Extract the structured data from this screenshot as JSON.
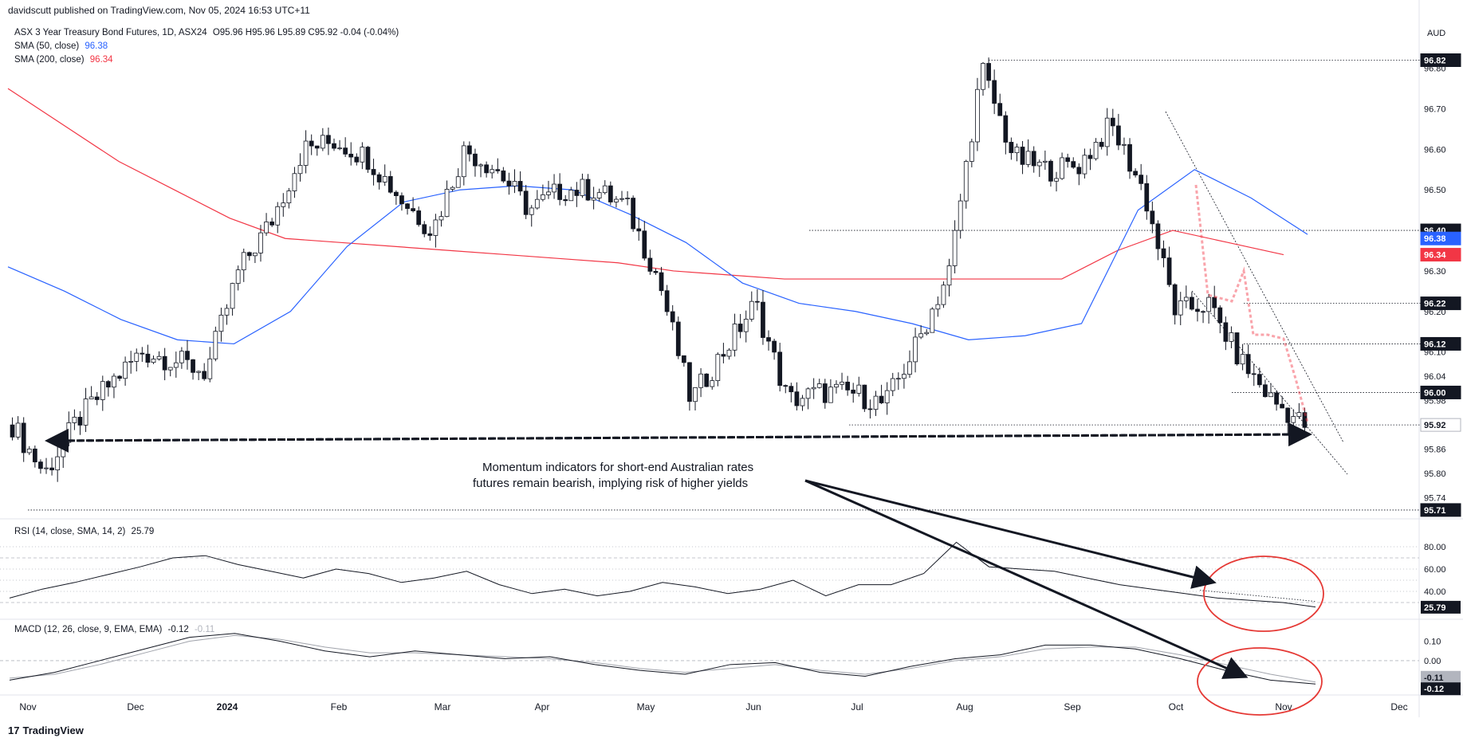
{
  "header": {
    "publisher_line": "davidscutt published on TradingView.com, Nov 05, 2024 16:53 UTC+11",
    "symbol_line": "ASX 3 Year Treasury Bond Futures, 1D, ASX24",
    "ohlc": "O95.96 H95.96 L95.89 C95.92 -0.04 (-0.04%)",
    "currency": "AUD",
    "sma50_label": "SMA (50, close)",
    "sma50_value": "96.38",
    "sma200_label": "SMA (200, close)",
    "sma200_value": "96.34",
    "rsi_label": "RSI (14, close, SMA, 14, 2)",
    "rsi_value": "25.79",
    "macd_label": "MACD (12, 26, close, 9, EMA, EMA)",
    "macd_value": "-0.12",
    "macd_signal_value": "-0.11"
  },
  "annotation": {
    "line1": "Momentum indicators for short-end Australian rates",
    "line2": "futures remain bearish, implying risk of higher yields"
  },
  "brand": {
    "name": "TradingView",
    "mark": "17"
  },
  "colors": {
    "up": "#ffffff",
    "down": "#131722",
    "sma50": "#2962ff",
    "sma200": "#f23645",
    "grid": "#b2b5be",
    "highlight": "#f23645"
  },
  "chart_data": {
    "type": "candlestick",
    "title": "ASX 3 Year Treasury Bond Futures, 1D, ASX24",
    "x_ticks": [
      "Nov",
      "Dec",
      "2024",
      "Feb",
      "Mar",
      "Apr",
      "May",
      "Jun",
      "Jul",
      "Aug",
      "Sep",
      "Oct",
      "Nov",
      "Dec"
    ],
    "price_axis": {
      "ticks": [
        95.74,
        95.8,
        95.86,
        95.98,
        96.04,
        96.1,
        96.2,
        96.3,
        96.5,
        96.6,
        96.7,
        96.8
      ],
      "labeled_levels": [
        {
          "value": 96.82,
          "label": "96.82",
          "style": "dark"
        },
        {
          "value": 96.4,
          "label": "96.40",
          "style": "dark"
        },
        {
          "value": 96.38,
          "label": "96.38",
          "style": "blue"
        },
        {
          "value": 96.34,
          "label": "96.34",
          "style": "red"
        },
        {
          "value": 96.22,
          "label": "96.22",
          "style": "dark"
        },
        {
          "value": 96.12,
          "label": "96.12",
          "style": "dark"
        },
        {
          "value": 96.0,
          "label": "96.00",
          "style": "dark"
        },
        {
          "value": 95.92,
          "label": "95.92",
          "style": "light"
        },
        {
          "value": 95.71,
          "label": "95.71",
          "style": "dark"
        }
      ],
      "range": [
        95.7,
        96.88
      ]
    },
    "series": [
      {
        "name": "SMA (50, close)",
        "type": "line",
        "color": "#2962ff",
        "values": [
          96.31,
          96.25,
          96.18,
          96.13,
          96.12,
          96.2,
          96.36,
          96.47,
          96.5,
          96.51,
          96.5,
          96.44,
          96.37,
          96.27,
          96.22,
          96.2,
          96.17,
          96.13,
          96.14,
          96.17,
          96.45,
          96.55,
          96.48,
          96.39
        ]
      },
      {
        "name": "SMA (200, close)",
        "type": "line",
        "color": "#f23645",
        "values": [
          96.75,
          96.66,
          96.57,
          96.5,
          96.43,
          96.38,
          96.37,
          96.36,
          96.35,
          96.34,
          96.33,
          96.32,
          96.3,
          96.29,
          96.28,
          96.28,
          96.28,
          96.28,
          96.28,
          96.28,
          96.35,
          96.4,
          96.37,
          96.34
        ]
      }
    ],
    "candles_close": [
      95.92,
      95.8,
      95.93,
      96.02,
      96.1,
      96.08,
      96.05,
      96.3,
      96.42,
      96.6,
      96.62,
      96.58,
      96.48,
      96.4,
      96.6,
      96.55,
      96.45,
      96.5,
      96.5,
      96.46,
      96.28,
      95.98,
      96.1,
      96.22,
      95.98,
      96.0,
      96.0,
      95.97,
      96.12,
      96.3,
      96.8,
      96.58,
      96.55,
      96.56,
      96.66,
      96.5,
      96.2,
      96.22,
      96.08,
      95.98,
      95.92
    ],
    "rsi": {
      "name": "RSI (14, close, SMA, 14, 2)",
      "levels": [
        80,
        70,
        60,
        50,
        40,
        30
      ],
      "last": 25.79,
      "values": [
        34,
        42,
        48,
        55,
        62,
        70,
        72,
        64,
        58,
        52,
        60,
        56,
        48,
        52,
        58,
        46,
        38,
        42,
        36,
        40,
        48,
        44,
        38,
        42,
        50,
        36,
        46,
        46,
        56,
        84,
        62,
        60,
        58,
        52,
        46,
        42,
        38,
        34,
        32,
        30,
        26
      ]
    },
    "macd": {
      "name": "MACD (12, 26, close, 9, EMA, EMA)",
      "levels": [
        0.1,
        0.0,
        -0.11,
        -0.12
      ],
      "macd_values": [
        -0.1,
        -0.06,
        0.0,
        0.06,
        0.12,
        0.14,
        0.1,
        0.05,
        0.02,
        0.05,
        0.03,
        0.01,
        0.02,
        -0.02,
        -0.05,
        -0.07,
        -0.02,
        -0.01,
        -0.06,
        -0.08,
        -0.03,
        0.01,
        0.03,
        0.08,
        0.08,
        0.06,
        0.01,
        -0.05,
        -0.1,
        -0.12
      ],
      "signal_values": [
        -0.09,
        -0.07,
        -0.02,
        0.04,
        0.1,
        0.13,
        0.11,
        0.07,
        0.04,
        0.04,
        0.03,
        0.02,
        0.01,
        -0.01,
        -0.04,
        -0.06,
        -0.04,
        -0.02,
        -0.05,
        -0.07,
        -0.04,
        0.0,
        0.02,
        0.06,
        0.07,
        0.07,
        0.03,
        -0.02,
        -0.07,
        -0.11
      ]
    }
  }
}
